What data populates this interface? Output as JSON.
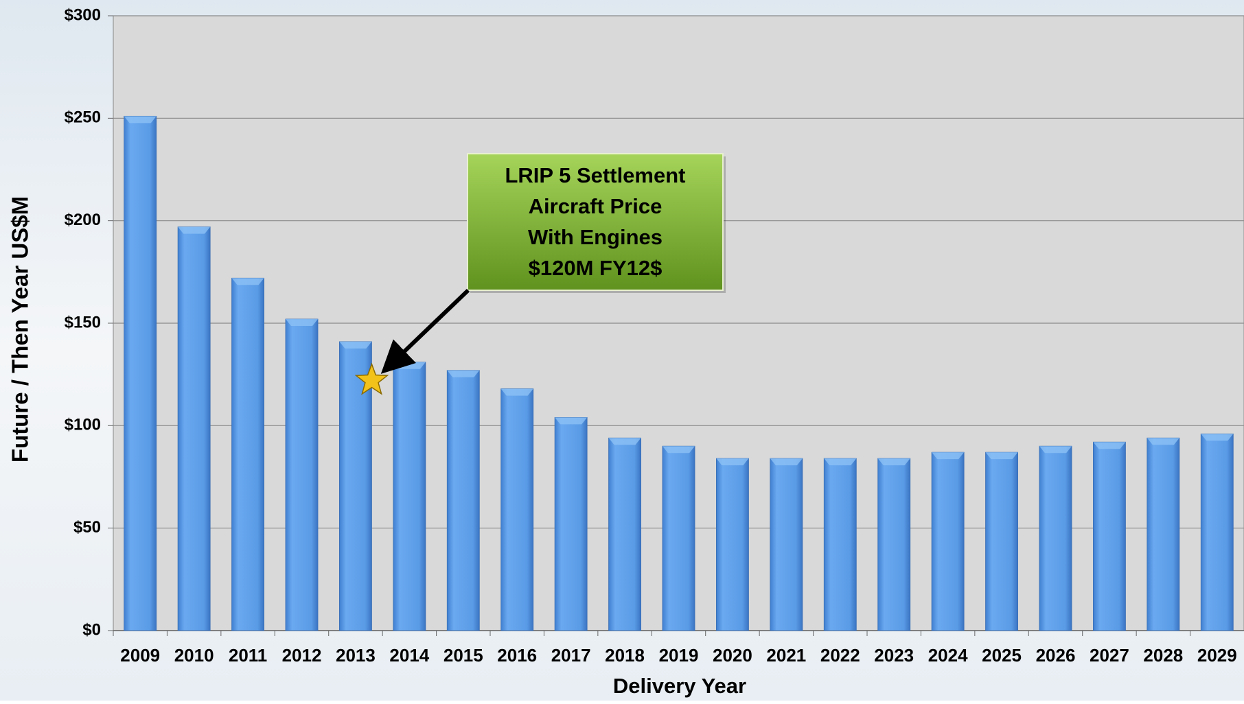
{
  "chart_data": {
    "type": "bar",
    "x_label": "Delivery Year",
    "y_label": "Future / Then Year US$M",
    "categories": [
      "2009",
      "2010",
      "2011",
      "2012",
      "2013",
      "2014",
      "2015",
      "2016",
      "2017",
      "2018",
      "2019",
      "2020",
      "2021",
      "2022",
      "2023",
      "2024",
      "2025",
      "2026",
      "2027",
      "2028",
      "2029"
    ],
    "values": [
      251,
      197,
      172,
      152,
      141,
      131,
      127,
      118,
      104,
      94,
      90,
      84,
      84,
      84,
      84,
      87,
      87,
      90,
      92,
      94,
      96
    ],
    "color": "#5b9ce8",
    "ylim": [
      0,
      300
    ],
    "yticks": [
      {
        "value": 0,
        "label": "$0"
      },
      {
        "value": 50,
        "label": "$50"
      },
      {
        "value": 100,
        "label": "$100"
      },
      {
        "value": 150,
        "label": "$150"
      },
      {
        "value": 200,
        "label": "$200"
      },
      {
        "value": 250,
        "label": "$250"
      },
      {
        "value": 300,
        "label": "$300"
      }
    ],
    "grid": true,
    "annotation": {
      "lines": [
        "LRIP 5 Settlement",
        "Aircraft Price",
        "With Engines",
        "$120M FY12$"
      ],
      "star_value": 122
    }
  }
}
